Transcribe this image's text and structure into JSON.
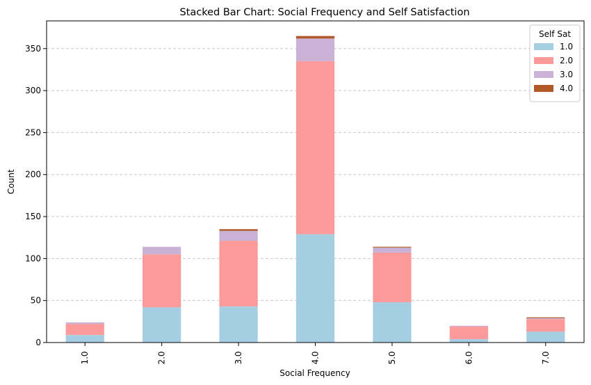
{
  "chart_data": {
    "type": "bar",
    "stacked": true,
    "title": "Stacked Bar Chart: Social Frequency and Self Satisfaction",
    "xlabel": "Social Frequency",
    "ylabel": "Count",
    "categories": [
      "1.0",
      "2.0",
      "3.0",
      "4.0",
      "5.0",
      "6.0",
      "7.0"
    ],
    "ylim": [
      0,
      383
    ],
    "yticks": [
      0,
      50,
      100,
      150,
      200,
      250,
      300,
      350
    ],
    "grid": "horizontal dashed",
    "legend": {
      "title": "Self Sat",
      "placement": "top-right"
    },
    "series": [
      {
        "name": "1.0",
        "color": "#a6cee3",
        "values": [
          9,
          42,
          43,
          129,
          48,
          4,
          13
        ]
      },
      {
        "name": "2.0",
        "color": "#fb9a99",
        "values": [
          13,
          63,
          78,
          206,
          59,
          15,
          15
        ]
      },
      {
        "name": "3.0",
        "color": "#cab2d6",
        "values": [
          2,
          9,
          12,
          27,
          6,
          1,
          1
        ]
      },
      {
        "name": "4.0",
        "color": "#b15928",
        "values": [
          0,
          0,
          2,
          3,
          1,
          0,
          1
        ]
      }
    ]
  }
}
